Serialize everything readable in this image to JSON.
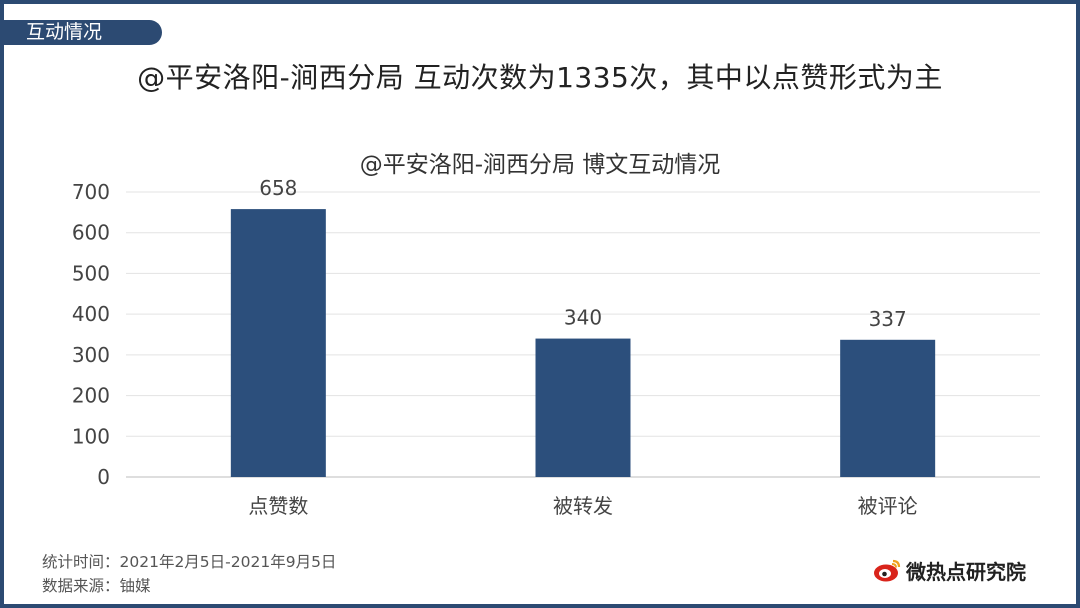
{
  "section_tab": "互动情况",
  "headline": "@平安洛阳-涧西分局 互动次数为1335次，其中以点赞形式为主",
  "chart_data": {
    "type": "bar",
    "title": "@平安洛阳-涧西分局 博文互动情况",
    "categories": [
      "点赞数",
      "被转发",
      "被评论"
    ],
    "values": [
      658,
      340,
      337
    ],
    "ylim": [
      0,
      700
    ],
    "yticks": [
      0,
      100,
      200,
      300,
      400,
      500,
      600,
      700
    ],
    "grid": true,
    "bar_color": "#2c4f7c"
  },
  "footer": {
    "period": "统计时间：2021年2月5日-2021年9月5日",
    "source": "数据来源：铀媒"
  },
  "brand": {
    "name": "微热点研究院",
    "accent": "#d9241b"
  },
  "colors": {
    "frame": "#2c4a72"
  }
}
